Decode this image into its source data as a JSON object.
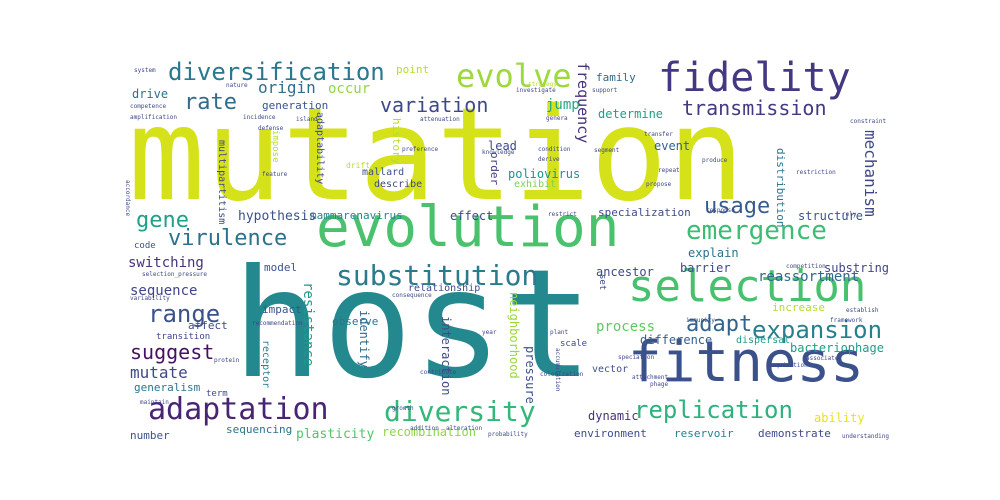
{
  "title": "",
  "words": [
    {
      "text": "mutation",
      "color": "#d5e21a"
    },
    {
      "text": "host",
      "color": "#23898e"
    },
    {
      "text": "evolution",
      "color": "#4ac16d"
    },
    {
      "text": "fitness",
      "color": "#3b518b"
    },
    {
      "text": "fidelity",
      "color": "#453882"
    },
    {
      "text": "selection",
      "color": "#48c16e"
    },
    {
      "text": "diversification",
      "color": "#2a788e"
    },
    {
      "text": "evolve",
      "color": "#9dd93b"
    },
    {
      "text": "adaptation",
      "color": "#482475"
    },
    {
      "text": "diversity",
      "color": "#35b779"
    },
    {
      "text": "replication",
      "color": "#2db27d"
    },
    {
      "text": "substitution",
      "color": "#2a7b8e"
    },
    {
      "text": "emergence",
      "color": "#3dbc74"
    },
    {
      "text": "virulence",
      "color": "#2c728e"
    },
    {
      "text": "expansion",
      "color": "#277f8e"
    },
    {
      "text": "variation",
      "color": "#3e4989"
    },
    {
      "text": "transmission",
      "color": "#443a83"
    },
    {
      "text": "rate",
      "color": "#2f6c8e"
    },
    {
      "text": "gene",
      "color": "#1fa088"
    },
    {
      "text": "range",
      "color": "#3b528b"
    },
    {
      "text": "adapt",
      "color": "#33638d"
    },
    {
      "text": "usage",
      "color": "#365c8d"
    },
    {
      "text": "mechanism",
      "color": "#3f4788"
    },
    {
      "text": "suggest",
      "color": "#471063"
    },
    {
      "text": "mutate",
      "color": "#3e4a89"
    },
    {
      "text": "sequence",
      "color": "#404588"
    },
    {
      "text": "switching",
      "color": "#46327e"
    },
    {
      "text": "reassortment",
      "color": "#31688e"
    },
    {
      "text": "process",
      "color": "#5ec962"
    },
    {
      "text": "origin",
      "color": "#2e6e8e"
    },
    {
      "text": "occur",
      "color": "#8fd744"
    },
    {
      "text": "frequency",
      "color": "#46337e"
    },
    {
      "text": "family",
      "color": "#31688e"
    },
    {
      "text": "drive",
      "color": "#2c728e"
    },
    {
      "text": "generation",
      "color": "#3a538b"
    },
    {
      "text": "jump",
      "color": "#22a884"
    },
    {
      "text": "lead",
      "color": "#3f4889"
    },
    {
      "text": "event",
      "color": "#34608d"
    },
    {
      "text": "poliovirus",
      "color": "#20928c"
    },
    {
      "text": "exhibit",
      "color": "#7ad151"
    },
    {
      "text": "order",
      "color": "#433e85"
    },
    {
      "text": "history",
      "color": "#b5de2b"
    },
    {
      "text": "adaptability",
      "color": "#3f4788"
    },
    {
      "text": "determine",
      "color": "#1f9e89"
    },
    {
      "text": "distribution",
      "color": "#2a788e"
    },
    {
      "text": "hypothesis",
      "color": "#3b518b"
    },
    {
      "text": "mammarenavirus",
      "color": "#24868e"
    },
    {
      "text": "effect",
      "color": "#3f4788"
    },
    {
      "text": "specialization",
      "color": "#3e4c8a"
    },
    {
      "text": "structure",
      "color": "#3a548c"
    },
    {
      "text": "explain",
      "color": "#2c728e"
    },
    {
      "text": "barrier",
      "color": "#3e4989"
    },
    {
      "text": "ancestor",
      "color": "#3f4889"
    },
    {
      "text": "substring",
      "color": "#404688"
    },
    {
      "text": "increase",
      "color": "#b2dd2d"
    },
    {
      "text": "bacteriophage",
      "color": "#1e9c89"
    },
    {
      "text": "difference",
      "color": "#34608d"
    },
    {
      "text": "dispersal",
      "color": "#1e9b8a"
    },
    {
      "text": "model",
      "color": "#3a548c"
    },
    {
      "text": "impact",
      "color": "#3b528b"
    },
    {
      "text": "affect",
      "color": "#404688"
    },
    {
      "text": "observe",
      "color": "#2a778e"
    },
    {
      "text": "relationship",
      "color": "#3e4a89"
    },
    {
      "text": "resistance",
      "color": "#1f9a8a"
    },
    {
      "text": "identify",
      "color": "#2f6b8e"
    },
    {
      "text": "interaction",
      "color": "#3d4d8a"
    },
    {
      "text": "neighborhood",
      "color": "#9bd93c"
    },
    {
      "text": "pressure",
      "color": "#3c4f8a"
    },
    {
      "text": "receptor",
      "color": "#26818e"
    },
    {
      "text": "transition",
      "color": "#3f4788"
    },
    {
      "text": "generalism",
      "color": "#2b748e"
    },
    {
      "text": "term",
      "color": "#3e4989"
    },
    {
      "text": "number",
      "color": "#3b528b"
    },
    {
      "text": "sequencing",
      "color": "#2d718e"
    },
    {
      "text": "plasticity",
      "color": "#50c46a"
    },
    {
      "text": "recombination",
      "color": "#8bd646"
    },
    {
      "text": "dynamic",
      "color": "#46337e"
    },
    {
      "text": "environment",
      "color": "#3d4d8a"
    },
    {
      "text": "reservoir",
      "color": "#26818e"
    },
    {
      "text": "demonstrate",
      "color": "#3e4a89"
    },
    {
      "text": "ability",
      "color": "#e7e419"
    },
    {
      "text": "vector",
      "color": "#3b528b"
    },
    {
      "text": "scale",
      "color": "#3e4989"
    },
    {
      "text": "set",
      "color": "#3e4989"
    },
    {
      "text": "point",
      "color": "#b8de29"
    },
    {
      "text": "code",
      "color": "#3b528b"
    },
    {
      "text": "describe",
      "color": "#3e4989"
    },
    {
      "text": "mallard",
      "color": "#3b528b"
    },
    {
      "text": "multipartitism",
      "color": "#3e4989"
    },
    {
      "text": "impose",
      "color": "#b5de2b"
    },
    {
      "text": "drift",
      "color": "#b5de2b"
    },
    {
      "text": "system",
      "color": "#3e4989"
    },
    {
      "text": "nature",
      "color": "#3e4989"
    },
    {
      "text": "competence",
      "color": "#3e4989"
    },
    {
      "text": "amplification",
      "color": "#3e4989"
    },
    {
      "text": "accordance",
      "color": "#3e4989"
    },
    {
      "text": "incidence",
      "color": "#3e4989"
    },
    {
      "text": "defense",
      "color": "#3e4989"
    },
    {
      "text": "island",
      "color": "#3e4989"
    },
    {
      "text": "feature",
      "color": "#3e4989"
    },
    {
      "text": "preference",
      "color": "#3e4989"
    },
    {
      "text": "knowledge",
      "color": "#3e4989"
    },
    {
      "text": "condition",
      "color": "#3e4989"
    },
    {
      "text": "derive",
      "color": "#3e4989"
    },
    {
      "text": "investigate",
      "color": "#3e4989"
    },
    {
      "text": "genera",
      "color": "#3e4989"
    },
    {
      "text": "strategy",
      "color": "#b5de2b"
    },
    {
      "text": "support",
      "color": "#3e4989"
    },
    {
      "text": "attenuation",
      "color": "#3e4989"
    },
    {
      "text": "segment",
      "color": "#3e4989"
    },
    {
      "text": "transfer",
      "color": "#3e4989"
    },
    {
      "text": "repeat",
      "color": "#3e4989"
    },
    {
      "text": "produce",
      "color": "#3e4989"
    },
    {
      "text": "propose",
      "color": "#3e4989"
    },
    {
      "text": "constraint",
      "color": "#3e4989"
    },
    {
      "text": "restriction",
      "color": "#3e4989"
    },
    {
      "text": "response",
      "color": "#3e4989"
    },
    {
      "text": "rely",
      "color": "#3e4989"
    },
    {
      "text": "restrict",
      "color": "#3e4989"
    },
    {
      "text": "selection_pressure",
      "color": "#3e4989"
    },
    {
      "text": "variability",
      "color": "#3e4989"
    },
    {
      "text": "recommendation",
      "color": "#3e4989"
    },
    {
      "text": "consequence",
      "color": "#3e4989"
    },
    {
      "text": "competition",
      "color": "#3e4989"
    },
    {
      "text": "establish",
      "color": "#3e4989"
    },
    {
      "text": "immunity",
      "color": "#3e4989"
    },
    {
      "text": "framework",
      "color": "#3e4989"
    },
    {
      "text": "acquisition",
      "color": "#3e4989"
    },
    {
      "text": "associate",
      "color": "#3e4989"
    },
    {
      "text": "speciation",
      "color": "#3e4989"
    },
    {
      "text": "accumulation",
      "color": "#3e4989"
    },
    {
      "text": "colonization",
      "color": "#3e4989"
    },
    {
      "text": "attachment",
      "color": "#3e4989"
    },
    {
      "text": "probability",
      "color": "#3e4989"
    },
    {
      "text": "contribute",
      "color": "#3e4989"
    },
    {
      "text": "addition",
      "color": "#3e4989"
    },
    {
      "text": "alteration",
      "color": "#3e4989"
    },
    {
      "text": "phage",
      "color": "#3e4989"
    },
    {
      "text": "understanding",
      "color": "#3e4989"
    },
    {
      "text": "year",
      "color": "#3e4989"
    },
    {
      "text": "growth",
      "color": "#3e4989"
    },
    {
      "text": "maintain",
      "color": "#3e4989"
    },
    {
      "text": "plant",
      "color": "#3e4989"
    },
    {
      "text": "protein",
      "color": "#3e4989"
    }
  ]
}
